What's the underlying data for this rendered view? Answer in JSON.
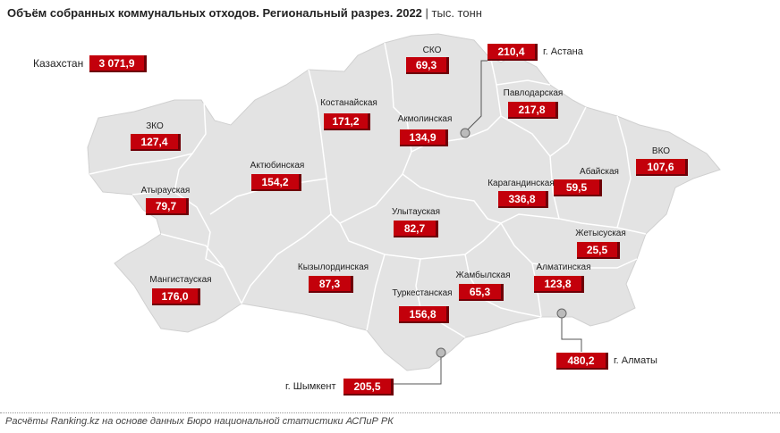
{
  "title": "Объём собранных коммунальных отходов. Региональный разрез. 2022",
  "unit": "| тыс. тонн",
  "footer": "Расчёты Ranking.kz на основе данных Бюро национальной статистики АСПиР РК",
  "kazakhstan": {
    "label": "Казахстан",
    "value": "3 071,9"
  },
  "regions": {
    "sko": {
      "label": "СКО",
      "value": "69,3"
    },
    "astana": {
      "label": "г. Астана",
      "value": "210,4"
    },
    "kostanay": {
      "label": "Костанайская",
      "value": "171,2"
    },
    "akmola": {
      "label": "Акмолинская",
      "value": "134,9"
    },
    "pavlodar": {
      "label": "Павлодарская",
      "value": "217,8"
    },
    "zko": {
      "label": "ЗКО",
      "value": "127,4"
    },
    "aktobe": {
      "label": "Актюбинская",
      "value": "154,2"
    },
    "vko": {
      "label": "ВКО",
      "value": "107,6"
    },
    "abay": {
      "label": "Абайская",
      "value": "59,5"
    },
    "karaganda": {
      "label": "Карагандинская",
      "value": "336,8"
    },
    "atyrau": {
      "label": "Атырауская",
      "value": "79,7"
    },
    "ulytau": {
      "label": "Улытауская",
      "value": "82,7"
    },
    "zhetysu": {
      "label": "Жетысуская",
      "value": "25,5"
    },
    "mangystau": {
      "label": "Мангистауская",
      "value": "176,0"
    },
    "kyzylorda": {
      "label": "Кызылординская",
      "value": "87,3"
    },
    "zhambyl": {
      "label": "Жамбылская",
      "value": "65,3"
    },
    "almaty_obl": {
      "label": "Алматинская",
      "value": "123,8"
    },
    "turkestan": {
      "label": "Туркестанская",
      "value": "156,8"
    },
    "almaty": {
      "label": "г. Алматы",
      "value": "480,2"
    },
    "shymkent": {
      "label": "г. Шымкент",
      "value": "205,5"
    }
  },
  "colors": {
    "map_fill": "#e3e3e3",
    "border": "#ffffff",
    "value_box": "#c3000b"
  }
}
